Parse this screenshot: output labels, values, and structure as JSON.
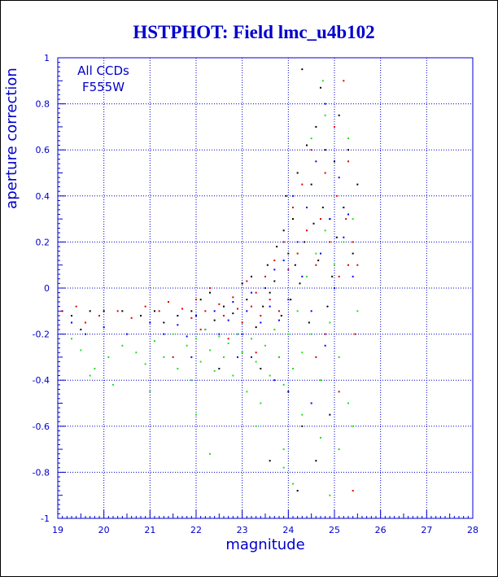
{
  "chart_data": {
    "type": "scatter",
    "title": "HSTPHOT: Field lmc_u4b102",
    "xlabel": "magnitude",
    "ylabel": "aperture correction",
    "annotation": [
      "All CCDs",
      "F555W"
    ],
    "xlim": [
      19,
      28
    ],
    "ylim": [
      -1,
      1
    ],
    "x_ticks": [
      19,
      20,
      21,
      22,
      23,
      24,
      25,
      26,
      27,
      28
    ],
    "y_ticks": [
      1,
      0.8,
      0.6,
      0.4,
      0.2,
      0,
      -0.2,
      -0.4,
      -0.6,
      -0.8,
      -1
    ],
    "grid": true,
    "colors": {
      "axis": "#0000cc",
      "title": "#0000cc",
      "grid": "#0000cc",
      "black": "#000000",
      "red": "#dd0000",
      "blue": "#0000ff",
      "green": "#22dd22"
    },
    "series": [
      {
        "color": "black",
        "points": [
          [
            19.3,
            -0.12
          ],
          [
            19.5,
            -0.18
          ],
          [
            19.7,
            -0.1
          ],
          [
            20.0,
            -0.1
          ],
          [
            20.4,
            -0.1
          ],
          [
            20.8,
            -0.12
          ],
          [
            21.1,
            -0.1
          ],
          [
            21.3,
            -0.15
          ],
          [
            21.6,
            -0.12
          ],
          [
            21.9,
            -0.1
          ],
          [
            22.1,
            -0.05
          ],
          [
            22.3,
            -0.02
          ],
          [
            22.4,
            -0.14
          ],
          [
            22.6,
            -0.08
          ],
          [
            22.8,
            -0.11
          ],
          [
            23.0,
            0.02
          ],
          [
            23.1,
            -0.05
          ],
          [
            23.2,
            0.05
          ],
          [
            23.3,
            -0.17
          ],
          [
            23.45,
            -0.08
          ],
          [
            23.55,
            0.1
          ],
          [
            23.6,
            -0.02
          ],
          [
            23.7,
            0.03
          ],
          [
            23.75,
            0.18
          ],
          [
            23.85,
            -0.12
          ],
          [
            23.9,
            0.25
          ],
          [
            23.95,
            0.4
          ],
          [
            24.0,
            0.15
          ],
          [
            24.05,
            -0.05
          ],
          [
            24.1,
            0.3
          ],
          [
            24.15,
            0.1
          ],
          [
            24.2,
            0.5
          ],
          [
            24.25,
            0.02
          ],
          [
            24.3,
            0.95
          ],
          [
            24.35,
            0.2
          ],
          [
            24.4,
            0.62
          ],
          [
            24.45,
            -0.15
          ],
          [
            24.5,
            0.45
          ],
          [
            24.55,
            0.28
          ],
          [
            24.6,
            0.7
          ],
          [
            24.65,
            0.12
          ],
          [
            24.7,
            0.87
          ],
          [
            24.75,
            0.35
          ],
          [
            24.8,
            0.6
          ],
          [
            24.85,
            -0.08
          ],
          [
            24.9,
            0.3
          ],
          [
            24.95,
            0.05
          ],
          [
            25.0,
            0.55
          ],
          [
            25.05,
            0.22
          ],
          [
            25.1,
            0.75
          ],
          [
            25.2,
            0.35
          ],
          [
            25.3,
            0.6
          ],
          [
            25.4,
            0.15
          ],
          [
            25.5,
            0.45
          ],
          [
            24.0,
            -0.45
          ],
          [
            24.3,
            -0.6
          ],
          [
            24.6,
            -0.75
          ],
          [
            24.9,
            -0.55
          ],
          [
            23.4,
            -0.35
          ],
          [
            23.8,
            -0.3
          ],
          [
            22.5,
            -0.35
          ],
          [
            23.6,
            -0.75
          ],
          [
            24.2,
            -0.88
          ]
        ]
      },
      {
        "color": "red",
        "points": [
          [
            19.1,
            -0.1
          ],
          [
            19.4,
            -0.08
          ],
          [
            19.6,
            -0.15
          ],
          [
            19.9,
            -0.12
          ],
          [
            20.3,
            -0.1
          ],
          [
            20.6,
            -0.13
          ],
          [
            20.9,
            -0.08
          ],
          [
            21.2,
            -0.1
          ],
          [
            21.4,
            -0.06
          ],
          [
            21.7,
            -0.09
          ],
          [
            21.9,
            -0.13
          ],
          [
            22.0,
            -0.05
          ],
          [
            22.2,
            -0.1
          ],
          [
            22.3,
            0.0
          ],
          [
            22.5,
            -0.07
          ],
          [
            22.6,
            -0.12
          ],
          [
            22.8,
            -0.04
          ],
          [
            22.9,
            -0.09
          ],
          [
            23.0,
            -0.15
          ],
          [
            23.1,
            0.03
          ],
          [
            23.2,
            -0.08
          ],
          [
            23.3,
            -0.02
          ],
          [
            23.4,
            -0.12
          ],
          [
            23.5,
            0.05
          ],
          [
            23.6,
            -0.05
          ],
          [
            23.7,
            0.12
          ],
          [
            23.8,
            -0.1
          ],
          [
            23.9,
            0.2
          ],
          [
            24.0,
            0.08
          ],
          [
            24.1,
            0.35
          ],
          [
            24.2,
            0.15
          ],
          [
            24.3,
            0.45
          ],
          [
            24.4,
            0.25
          ],
          [
            24.5,
            0.6
          ],
          [
            24.6,
            0.1
          ],
          [
            24.7,
            0.3
          ],
          [
            24.8,
            0.5
          ],
          [
            24.9,
            0.2
          ],
          [
            25.0,
            0.7
          ],
          [
            25.05,
            0.4
          ],
          [
            25.1,
            0.05
          ],
          [
            25.2,
            0.9
          ],
          [
            25.25,
            0.3
          ],
          [
            25.3,
            0.55
          ],
          [
            25.4,
            0.2
          ],
          [
            25.45,
            -0.2
          ],
          [
            25.5,
            0.1
          ],
          [
            25.3,
            0.1
          ],
          [
            24.6,
            -0.3
          ],
          [
            25.4,
            -0.88
          ],
          [
            25.1,
            -0.45
          ],
          [
            24.8,
            -0.2
          ],
          [
            22.7,
            -0.22
          ],
          [
            23.3,
            -0.28
          ],
          [
            21.5,
            -0.3
          ],
          [
            22.1,
            -0.18
          ]
        ]
      },
      {
        "color": "blue",
        "points": [
          [
            19.3,
            -0.15
          ],
          [
            19.6,
            -0.2
          ],
          [
            20.0,
            -0.17
          ],
          [
            20.5,
            -0.2
          ],
          [
            21.0,
            -0.15
          ],
          [
            21.3,
            -0.2
          ],
          [
            21.6,
            -0.16
          ],
          [
            21.8,
            -0.21
          ],
          [
            22.0,
            -0.12
          ],
          [
            22.2,
            -0.18
          ],
          [
            22.4,
            -0.1
          ],
          [
            22.5,
            -0.2
          ],
          [
            22.7,
            -0.14
          ],
          [
            22.8,
            -0.06
          ],
          [
            23.0,
            -0.2
          ],
          [
            23.1,
            -0.1
          ],
          [
            23.2,
            -0.02
          ],
          [
            23.4,
            -0.15
          ],
          [
            23.5,
            0.0
          ],
          [
            23.6,
            -0.08
          ],
          [
            23.7,
            0.08
          ],
          [
            23.8,
            -0.14
          ],
          [
            23.9,
            0.12
          ],
          [
            24.0,
            -0.05
          ],
          [
            24.1,
            0.4
          ],
          [
            24.2,
            0.2
          ],
          [
            24.3,
            0.05
          ],
          [
            24.4,
            0.35
          ],
          [
            24.5,
            -0.1
          ],
          [
            24.6,
            0.55
          ],
          [
            24.7,
            0.15
          ],
          [
            24.8,
            0.8
          ],
          [
            24.9,
            0.3
          ],
          [
            25.0,
            0.0
          ],
          [
            25.1,
            0.48
          ],
          [
            25.2,
            0.22
          ],
          [
            25.3,
            0.32
          ],
          [
            25.4,
            0.05
          ],
          [
            22.9,
            -0.3
          ],
          [
            23.7,
            -0.4
          ],
          [
            24.5,
            -0.5
          ],
          [
            24.8,
            -0.25
          ],
          [
            21.9,
            -0.3
          ],
          [
            23.2,
            -0.3
          ]
        ]
      },
      {
        "color": "green",
        "points": [
          [
            19.3,
            -0.22
          ],
          [
            19.5,
            -0.27
          ],
          [
            19.8,
            -0.35
          ],
          [
            20.1,
            -0.3
          ],
          [
            20.4,
            -0.25
          ],
          [
            20.7,
            -0.28
          ],
          [
            20.9,
            -0.33
          ],
          [
            21.1,
            -0.23
          ],
          [
            21.3,
            -0.3
          ],
          [
            21.5,
            -0.2
          ],
          [
            21.6,
            -0.35
          ],
          [
            21.8,
            -0.25
          ],
          [
            21.9,
            -0.4
          ],
          [
            22.0,
            -0.22
          ],
          [
            22.1,
            -0.32
          ],
          [
            22.2,
            -0.18
          ],
          [
            22.3,
            -0.27
          ],
          [
            22.4,
            -0.36
          ],
          [
            22.5,
            -0.21
          ],
          [
            22.6,
            -0.3
          ],
          [
            22.7,
            -0.24
          ],
          [
            22.8,
            -0.38
          ],
          [
            22.9,
            -0.2
          ],
          [
            23.0,
            -0.28
          ],
          [
            23.1,
            -0.45
          ],
          [
            23.2,
            -0.22
          ],
          [
            23.3,
            -0.32
          ],
          [
            23.4,
            -0.5
          ],
          [
            23.5,
            -0.25
          ],
          [
            23.6,
            -0.38
          ],
          [
            23.7,
            -0.18
          ],
          [
            23.8,
            -0.3
          ],
          [
            23.9,
            -0.42
          ],
          [
            24.0,
            -0.2
          ],
          [
            24.1,
            -0.35
          ],
          [
            24.2,
            -0.1
          ],
          [
            24.3,
            -0.28
          ],
          [
            24.4,
            0.05
          ],
          [
            24.5,
            -0.2
          ],
          [
            24.6,
            0.15
          ],
          [
            24.7,
            -0.4
          ],
          [
            24.8,
            0.25
          ],
          [
            24.9,
            -0.15
          ],
          [
            25.0,
            0.1
          ],
          [
            25.1,
            -0.3
          ],
          [
            25.2,
            0.2
          ],
          [
            25.3,
            -0.5
          ],
          [
            25.4,
            0.3
          ],
          [
            25.5,
            -0.1
          ],
          [
            24.75,
            0.9
          ],
          [
            24.5,
            0.65
          ],
          [
            25.3,
            0.65
          ],
          [
            24.8,
            0.75
          ],
          [
            22.0,
            -0.55
          ],
          [
            22.3,
            -0.72
          ],
          [
            23.3,
            -0.6
          ],
          [
            23.9,
            -0.7
          ],
          [
            24.3,
            -0.55
          ],
          [
            24.7,
            -0.65
          ],
          [
            25.1,
            -0.7
          ],
          [
            25.4,
            -0.6
          ],
          [
            24.1,
            -0.85
          ],
          [
            23.9,
            -0.78
          ],
          [
            24.9,
            -0.9
          ],
          [
            21.0,
            -0.45
          ],
          [
            20.2,
            -0.42
          ],
          [
            19.7,
            -0.38
          ]
        ]
      }
    ]
  }
}
